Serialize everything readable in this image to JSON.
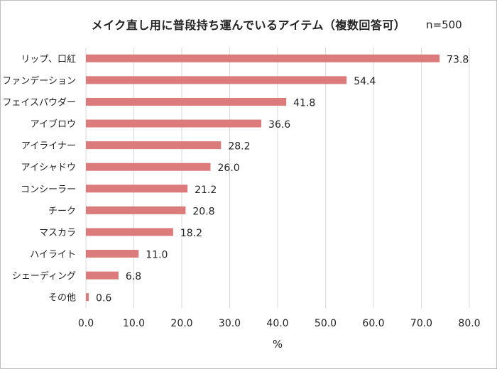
{
  "chart_data": {
    "type": "bar",
    "orientation": "horizontal",
    "title": "メイク直し用に普段持ち運んでいるアイテム（複数回答可）",
    "note": "n=500",
    "categories": [
      "リップ、口紅",
      "ファンデーション",
      "フェイスパウダー",
      "アイブロウ",
      "アイライナー",
      "アイシャドウ",
      "コンシーラー",
      "チーク",
      "マスカラ",
      "ハイライト",
      "シェーディング",
      "その他"
    ],
    "values": [
      73.8,
      54.4,
      41.8,
      36.6,
      28.2,
      26.0,
      21.2,
      20.8,
      18.2,
      11.0,
      6.8,
      0.6
    ],
    "value_labels": [
      "73.8",
      "54.4",
      "41.8",
      "36.6",
      "28.2",
      "26.0",
      "21.2",
      "20.8",
      "18.2",
      "11.0",
      "6.8",
      "0.6"
    ],
    "xlabel": "%",
    "ylabel": "",
    "xlim": [
      0,
      80
    ],
    "x_ticks": [
      "0.0",
      "10.0",
      "20.0",
      "30.0",
      "40.0",
      "50.0",
      "60.0",
      "70.0",
      "80.0"
    ],
    "grid": "vertical",
    "bar_color": "#db7b7b",
    "grid_color": "#d9d9d9"
  }
}
